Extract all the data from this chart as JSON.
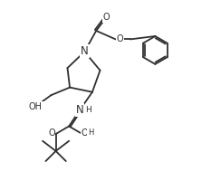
{
  "bg": "#ffffff",
  "lc": "#303030",
  "lw": 1.3,
  "fs": 7.0,
  "figsize": [
    2.33,
    2.0
  ],
  "dpi": 100,
  "xlim": [
    -1,
    12
  ],
  "ylim": [
    -0.5,
    11
  ]
}
